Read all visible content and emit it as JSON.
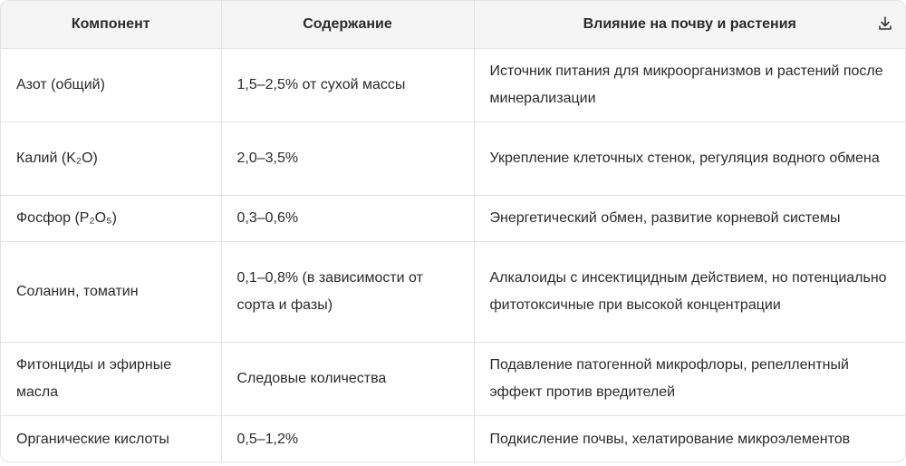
{
  "table": {
    "headers": [
      "Компонент",
      "Содержание",
      "Влияние на почву и растения"
    ],
    "rows": [
      [
        "Азот (общий)",
        "1,5–2,5% от сухой массы",
        "Источник питания для микроорганизмов и растений после минерализации"
      ],
      [
        "Калий (K₂O)",
        "2,0–3,5%",
        "Укрепление клеточных стенок, регуляция водного обмена"
      ],
      [
        "Фосфор (P₂O₅)",
        "0,3–0,6%",
        "Энергетический обмен, развитие корневой системы"
      ],
      [
        "Соланин, томатин",
        "0,1–0,8% (в зависимости от сорта и фазы)",
        "Алкалоиды с инсектицидным действием, но потенциально фитотоксичные при высокой концентрации"
      ],
      [
        "Фитонциды и эфирные масла",
        "Следовые количества",
        "Подавление патогенной микрофлоры, репеллентный эффект против вредителей"
      ],
      [
        "Органические кислоты",
        "0,5–1,2%",
        "Подкисление почвы, хелатирование микроэлементов"
      ]
    ]
  }
}
